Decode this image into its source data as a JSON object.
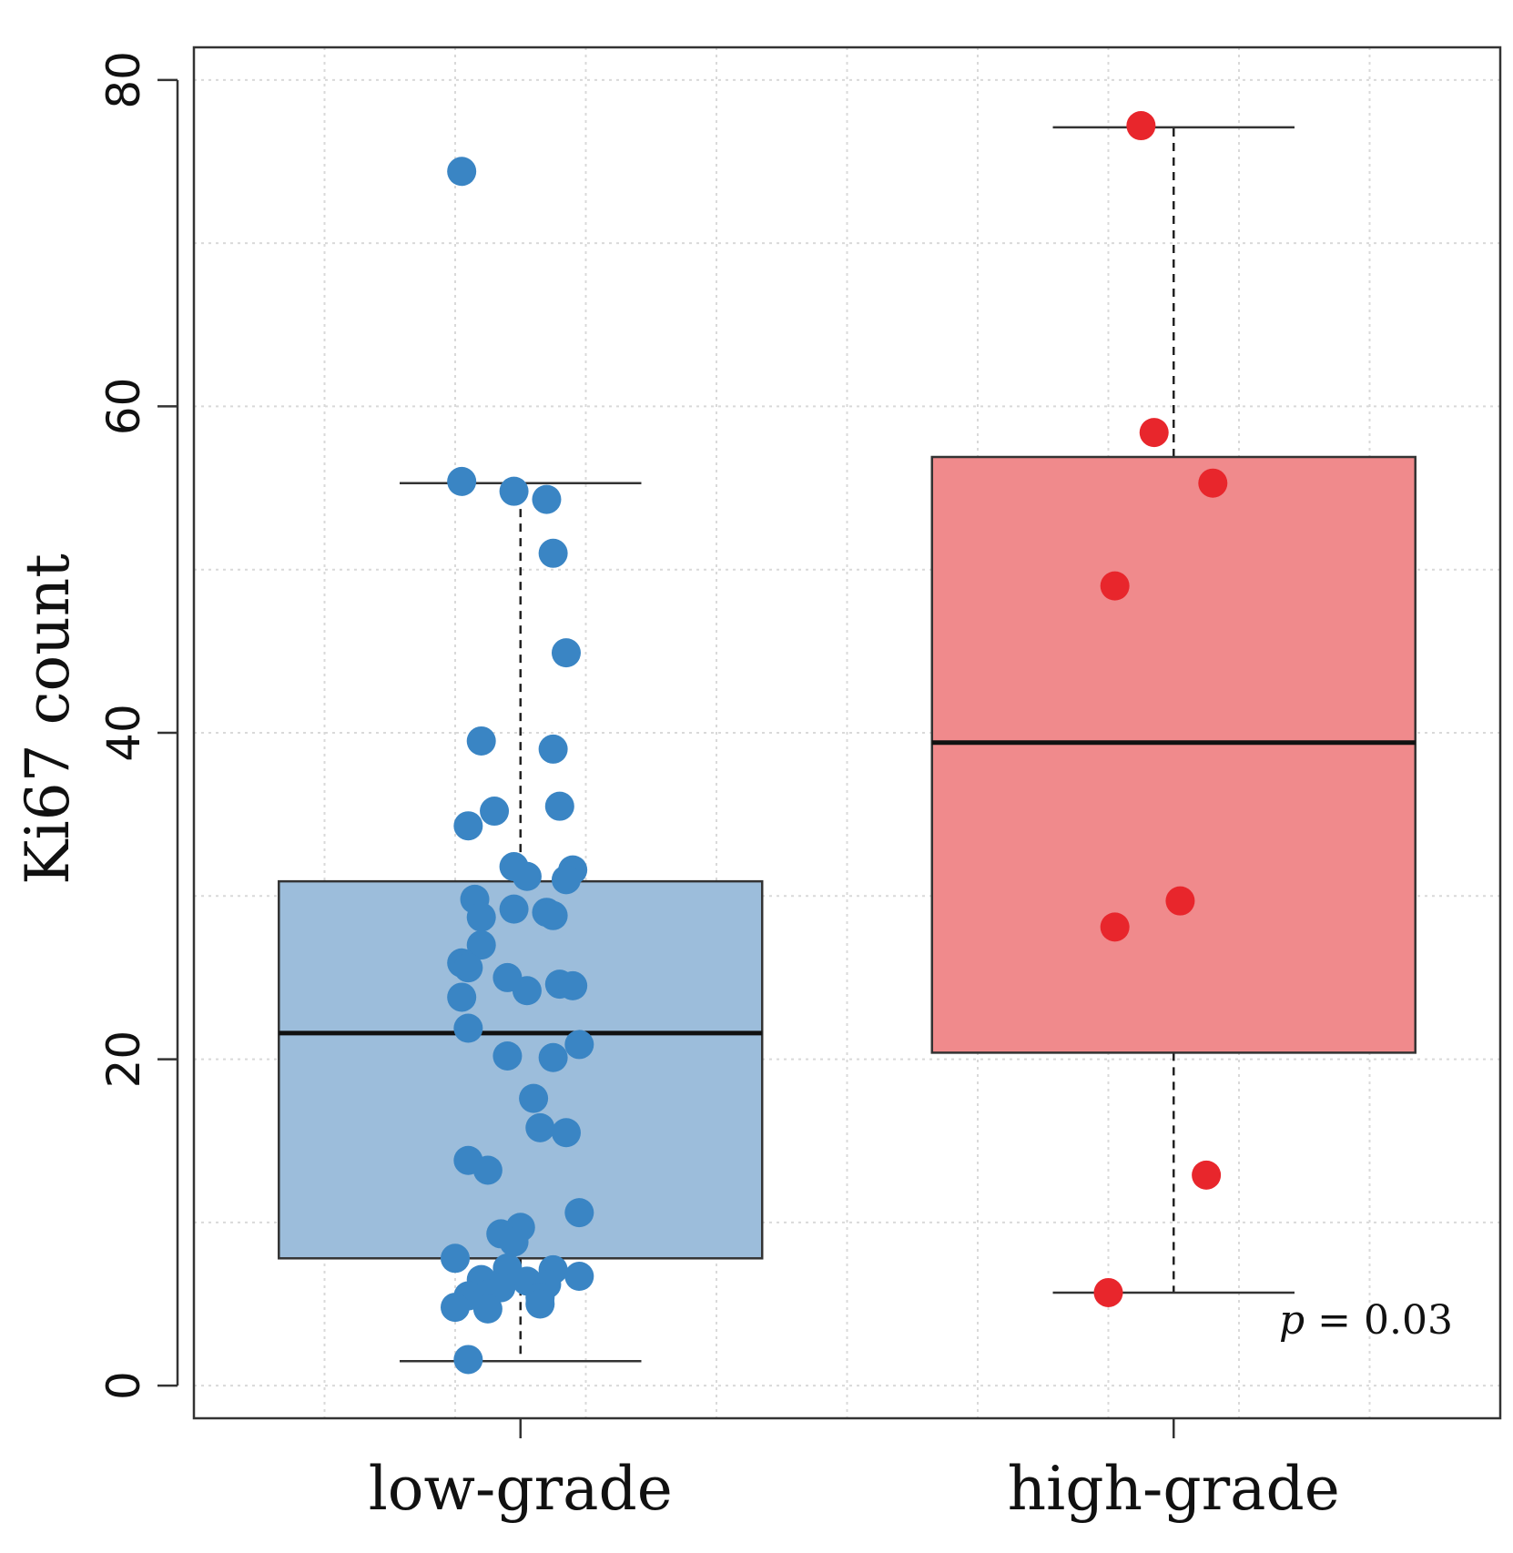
{
  "chart_data": {
    "type": "boxplot",
    "title": "",
    "xlabel": "",
    "ylabel": "Ki67 count",
    "ylim": [
      -2,
      82
    ],
    "yticks": [
      0,
      20,
      40,
      60,
      80
    ],
    "yticklabels": [
      "0",
      "20",
      "40",
      "60",
      "80"
    ],
    "grid": true,
    "categories": [
      "low-grade",
      "high-grade"
    ],
    "annotation": {
      "prefix": "p",
      "text": " = 0.03"
    },
    "groups": [
      {
        "name": "low-grade",
        "box_color": "#9cbddb",
        "point_color": "#3a85c4",
        "whisker_low": 1.5,
        "q1": 7.8,
        "median": 21.6,
        "q3": 30.9,
        "whisker_high": 55.3,
        "points": [
          {
            "offset": -0.09,
            "y": 74.4
          },
          {
            "offset": -0.09,
            "y": 55.4
          },
          {
            "offset": -0.01,
            "y": 54.8
          },
          {
            "offset": 0.04,
            "y": 54.3
          },
          {
            "offset": 0.05,
            "y": 51.0
          },
          {
            "offset": 0.07,
            "y": 44.9
          },
          {
            "offset": -0.06,
            "y": 39.5
          },
          {
            "offset": 0.05,
            "y": 39.0
          },
          {
            "offset": -0.04,
            "y": 35.2
          },
          {
            "offset": 0.06,
            "y": 35.5
          },
          {
            "offset": -0.08,
            "y": 34.3
          },
          {
            "offset": -0.01,
            "y": 31.8
          },
          {
            "offset": 0.01,
            "y": 31.2
          },
          {
            "offset": 0.08,
            "y": 31.6
          },
          {
            "offset": 0.07,
            "y": 31.0
          },
          {
            "offset": -0.07,
            "y": 29.8
          },
          {
            "offset": -0.06,
            "y": 28.7
          },
          {
            "offset": -0.01,
            "y": 29.2
          },
          {
            "offset": 0.04,
            "y": 29.0
          },
          {
            "offset": 0.05,
            "y": 28.8
          },
          {
            "offset": -0.06,
            "y": 27.0
          },
          {
            "offset": -0.09,
            "y": 25.9
          },
          {
            "offset": -0.08,
            "y": 25.6
          },
          {
            "offset": -0.02,
            "y": 25.0
          },
          {
            "offset": 0.01,
            "y": 24.2
          },
          {
            "offset": 0.06,
            "y": 24.6
          },
          {
            "offset": 0.08,
            "y": 24.5
          },
          {
            "offset": -0.09,
            "y": 23.8
          },
          {
            "offset": -0.08,
            "y": 21.9
          },
          {
            "offset": 0.09,
            "y": 20.9
          },
          {
            "offset": -0.02,
            "y": 20.2
          },
          {
            "offset": 0.05,
            "y": 20.1
          },
          {
            "offset": 0.02,
            "y": 17.6
          },
          {
            "offset": 0.03,
            "y": 15.8
          },
          {
            "offset": 0.07,
            "y": 15.5
          },
          {
            "offset": -0.08,
            "y": 13.8
          },
          {
            "offset": -0.05,
            "y": 13.2
          },
          {
            "offset": 0.09,
            "y": 10.6
          },
          {
            "offset": 0.0,
            "y": 9.7
          },
          {
            "offset": -0.03,
            "y": 9.3
          },
          {
            "offset": -0.01,
            "y": 8.8
          },
          {
            "offset": -0.1,
            "y": 7.8
          },
          {
            "offset": -0.02,
            "y": 7.2
          },
          {
            "offset": 0.05,
            "y": 7.1
          },
          {
            "offset": 0.09,
            "y": 6.7
          },
          {
            "offset": -0.06,
            "y": 6.5
          },
          {
            "offset": 0.01,
            "y": 6.4
          },
          {
            "offset": 0.04,
            "y": 6.2
          },
          {
            "offset": -0.03,
            "y": 6.0
          },
          {
            "offset": -0.08,
            "y": 5.5
          },
          {
            "offset": -0.05,
            "y": 5.6
          },
          {
            "offset": 0.03,
            "y": 5.4
          },
          {
            "offset": 0.03,
            "y": 5.0
          },
          {
            "offset": -0.1,
            "y": 4.8
          },
          {
            "offset": -0.05,
            "y": 4.7
          },
          {
            "offset": -0.08,
            "y": 1.6
          }
        ]
      },
      {
        "name": "high-grade",
        "box_color": "#f08a8c",
        "point_color": "#e8262c",
        "whisker_low": 5.7,
        "q1": 20.4,
        "median": 39.4,
        "q3": 56.9,
        "whisker_high": 77.1,
        "points": [
          {
            "offset": -0.05,
            "y": 77.2
          },
          {
            "offset": -0.03,
            "y": 58.4
          },
          {
            "offset": 0.06,
            "y": 55.3
          },
          {
            "offset": -0.09,
            "y": 49.0
          },
          {
            "offset": 0.01,
            "y": 29.7
          },
          {
            "offset": -0.09,
            "y": 28.1
          },
          {
            "offset": 0.05,
            "y": 12.9
          },
          {
            "offset": -0.1,
            "y": 5.7
          }
        ]
      }
    ]
  }
}
